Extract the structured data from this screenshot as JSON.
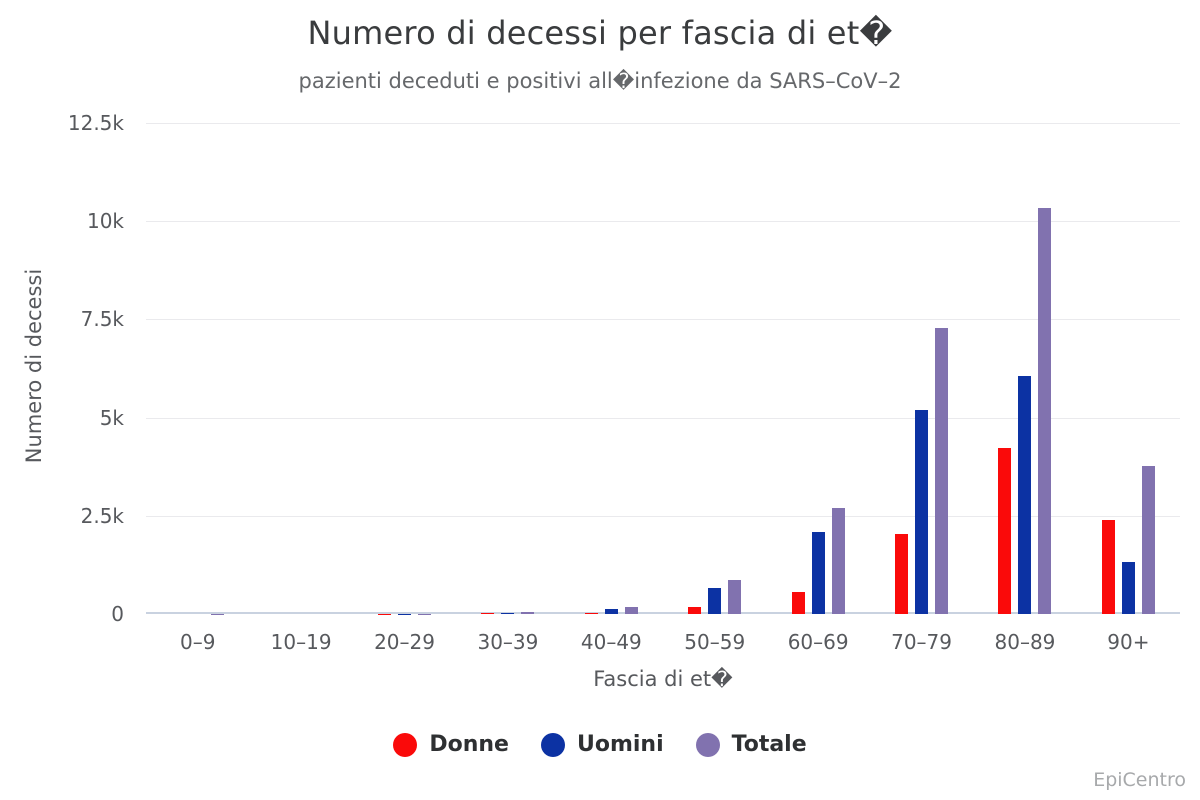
{
  "title": "Numero di decessi per fascia di et�",
  "subtitle": "pazienti deceduti e positivi all�infezione da SARS–CoV–2",
  "watermark": "EpiCentro",
  "chart_data": {
    "type": "bar",
    "title": "Numero di decessi per fascia di et�",
    "subtitle": "pazienti deceduti e positivi all�infezione da SARS–CoV–2",
    "xlabel": "Fascia di et�",
    "ylabel": "Numero di decessi",
    "categories": [
      "0–9",
      "10–19",
      "20–29",
      "30–39",
      "40–49",
      "50–59",
      "60–69",
      "70–79",
      "80–89",
      "90+"
    ],
    "series": [
      {
        "name": "Donne",
        "color": "#fa0a0a",
        "values": [
          1,
          0,
          5,
          15,
          25,
          170,
          560,
          2030,
          4220,
          2390
        ]
      },
      {
        "name": "Uomini",
        "color": "#0c32a3",
        "values": [
          1,
          1,
          8,
          25,
          120,
          660,
          2100,
          5200,
          6060,
          1330
        ]
      },
      {
        "name": "Totale",
        "color": "#8172af",
        "values": [
          2,
          1,
          13,
          40,
          170,
          870,
          2690,
          7280,
          10330,
          3780
        ]
      }
    ],
    "ylim": [
      0,
      12500
    ],
    "yticks": [
      {
        "value": 0,
        "label": "0"
      },
      {
        "value": 2500,
        "label": "2.5k"
      },
      {
        "value": 5000,
        "label": "5k"
      },
      {
        "value": 7500,
        "label": "7.5k"
      },
      {
        "value": 10000,
        "label": "10k"
      },
      {
        "value": 12500,
        "label": "12.5k"
      }
    ],
    "grid": true,
    "legend_position": "bottom",
    "colors": {
      "donne": "#fa0a0a",
      "uomini": "#0c32a3",
      "totale": "#8172af",
      "gridline": "#eaeaed",
      "zeroline": "#c9d2e0"
    }
  }
}
